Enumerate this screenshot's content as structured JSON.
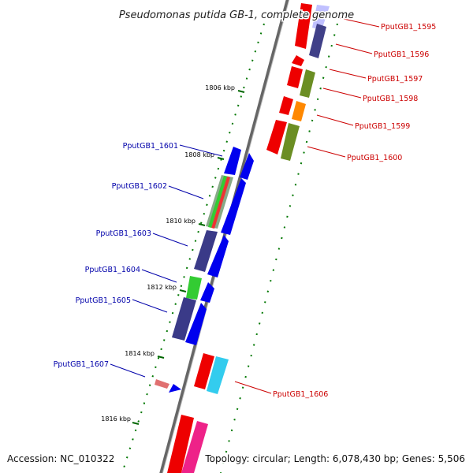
{
  "title": "Pseudomonas putida GB-1, complete genome",
  "footer": {
    "accession": "Accession: NC_010322",
    "topology": "Topology: circular; Length: 6,078,430 bp; Genes: 5,506"
  },
  "colors": {
    "forward_label": "#cc0000",
    "reverse_label": "#0000aa",
    "backbone": "#888888",
    "tick": "#006600"
  },
  "kbp_ticks": [
    "1806 kbp",
    "1808 kbp",
    "1810 kbp",
    "1812 kbp",
    "1814 kbp",
    "1816 kbp"
  ],
  "genes_forward": [
    {
      "label": "PputGB1_1595"
    },
    {
      "label": "PputGB1_1596"
    },
    {
      "label": "PputGB1_1597"
    },
    {
      "label": "PputGB1_1598"
    },
    {
      "label": "PputGB1_1599"
    },
    {
      "label": "PputGB1_1600"
    },
    {
      "label": "PputGB1_1606"
    }
  ],
  "genes_reverse": [
    {
      "label": "PputGB1_1601"
    },
    {
      "label": "PputGB1_1602"
    },
    {
      "label": "PputGB1_1603"
    },
    {
      "label": "PputGB1_1604"
    },
    {
      "label": "PputGB1_1605"
    },
    {
      "label": "PputGB1_1607"
    }
  ]
}
